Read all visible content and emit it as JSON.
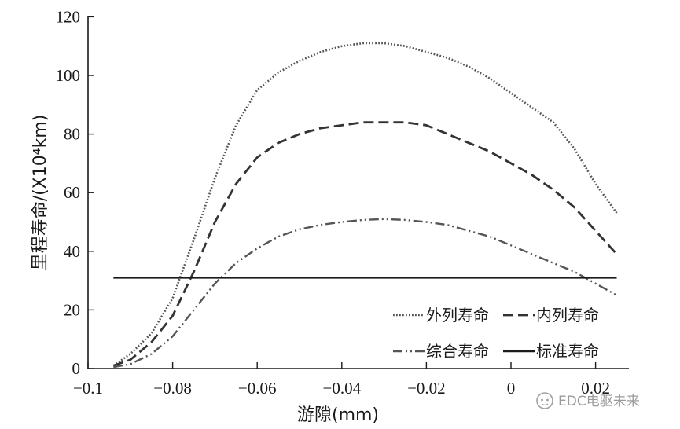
{
  "chart_data": {
    "type": "line",
    "title": "",
    "xlabel": "游隙(mm)",
    "ylabel": "里程寿命/(X10⁴km)",
    "xlim": [
      -0.1,
      0.03
    ],
    "ylim": [
      0,
      120
    ],
    "x_ticks": [
      -0.1,
      -0.08,
      -0.06,
      -0.04,
      -0.02,
      0,
      0.02
    ],
    "x_tick_labels": [
      "−0.1",
      "−0.08",
      "−0.06",
      "−0.04",
      "−0.02",
      "0",
      "0.02"
    ],
    "y_ticks": [
      0,
      20,
      40,
      60,
      80,
      100,
      120
    ],
    "y_tick_labels": [
      "0",
      "20",
      "40",
      "60",
      "80",
      "100",
      "120"
    ],
    "grid": false,
    "legend_position": "bottom-right",
    "series": [
      {
        "name": "外列寿命",
        "style": "dotted",
        "x": [
          -0.094,
          -0.09,
          -0.085,
          -0.08,
          -0.075,
          -0.07,
          -0.065,
          -0.06,
          -0.055,
          -0.05,
          -0.045,
          -0.04,
          -0.035,
          -0.03,
          -0.025,
          -0.02,
          -0.015,
          -0.01,
          -0.005,
          0,
          0.005,
          0.01,
          0.015,
          0.02,
          0.025
        ],
        "y": [
          1,
          5,
          12,
          24,
          44,
          65,
          83,
          95,
          101,
          105,
          108,
          110,
          111,
          111,
          110,
          108,
          106,
          103,
          99,
          94,
          89,
          84,
          75,
          63,
          53
        ]
      },
      {
        "name": "内列寿命",
        "style": "dashed",
        "x": [
          -0.094,
          -0.09,
          -0.085,
          -0.08,
          -0.075,
          -0.07,
          -0.065,
          -0.06,
          -0.055,
          -0.05,
          -0.045,
          -0.04,
          -0.035,
          -0.03,
          -0.025,
          -0.02,
          -0.015,
          -0.01,
          -0.005,
          0,
          0.005,
          0.01,
          0.015,
          0.02,
          0.025
        ],
        "y": [
          1,
          3,
          9,
          18,
          33,
          50,
          63,
          72,
          77,
          80,
          82,
          83,
          84,
          84,
          84,
          83,
          80,
          77,
          74,
          70,
          66,
          61,
          55,
          47,
          39
        ]
      },
      {
        "name": "综合寿命",
        "style": "dash-dot-dot",
        "x": [
          -0.094,
          -0.09,
          -0.085,
          -0.08,
          -0.075,
          -0.07,
          -0.065,
          -0.06,
          -0.055,
          -0.05,
          -0.045,
          -0.04,
          -0.035,
          -0.03,
          -0.025,
          -0.02,
          -0.015,
          -0.01,
          -0.005,
          0,
          0.005,
          0.01,
          0.015,
          0.02,
          0.025
        ],
        "y": [
          0.5,
          1.5,
          5,
          11,
          20,
          29,
          36,
          41,
          45,
          47.5,
          49,
          50,
          50.7,
          51,
          50.7,
          50,
          49,
          47,
          45,
          42,
          39,
          36,
          33,
          29,
          25
        ]
      },
      {
        "name": "标准寿命",
        "style": "solid",
        "x": [
          -0.094,
          0.025
        ],
        "y": [
          31,
          31
        ]
      }
    ]
  },
  "watermark": {
    "icon": "wechat-icon",
    "text": "EDC电驱未来"
  }
}
